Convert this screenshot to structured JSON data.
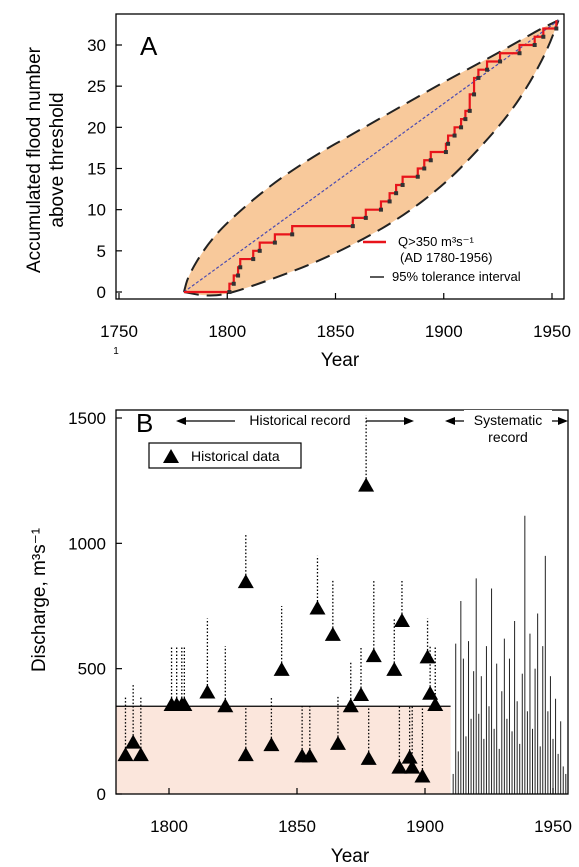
{
  "chart_data": [
    {
      "panel": "A",
      "type": "line",
      "panel_label": "A",
      "xlabel": "Year",
      "ylabel_line1": "Accumulated flood number",
      "ylabel_line2": "above threshold",
      "xlim": [
        1750,
        1955
      ],
      "ylim": [
        0,
        33
      ],
      "x_ticks": [
        "1750",
        "1800",
        "1850",
        "1900",
        "1950"
      ],
      "y_ticks": [
        "0",
        "5",
        "10",
        "15",
        "20",
        "25",
        "30"
      ],
      "stray_mark": "1",
      "legend": {
        "red_label": "Q>350 m³s⁻¹",
        "red_sublabel": "(AD 1780-1956)",
        "black_label": "95% tolerance interval"
      },
      "colors": {
        "step": "#e8141b",
        "fill": "#f8c99b",
        "diag": "#4a4ab0",
        "dash": "#222222"
      },
      "tolerance_band": {
        "upper": [
          [
            1780,
            0
          ],
          [
            1782,
            2
          ],
          [
            1790,
            5.5
          ],
          [
            1800,
            8.5
          ],
          [
            1820,
            13
          ],
          [
            1840,
            16.5
          ],
          [
            1860,
            19.5
          ],
          [
            1880,
            22.5
          ],
          [
            1900,
            25.5
          ],
          [
            1920,
            28.3
          ],
          [
            1935,
            30.5
          ],
          [
            1945,
            32
          ],
          [
            1953,
            33
          ]
        ],
        "lower": [
          [
            1780,
            0
          ],
          [
            1790,
            -0.5
          ],
          [
            1800,
            -0.3
          ],
          [
            1820,
            1.5
          ],
          [
            1840,
            3.5
          ],
          [
            1860,
            6
          ],
          [
            1880,
            9
          ],
          [
            1900,
            13
          ],
          [
            1915,
            17
          ],
          [
            1930,
            21.5
          ],
          [
            1940,
            25.5
          ],
          [
            1948,
            29.5
          ],
          [
            1953,
            33
          ]
        ]
      },
      "step_series": {
        "name": "Q>350 m³s⁻¹",
        "points": [
          [
            1780,
            0
          ],
          [
            1801,
            0
          ],
          [
            1801,
            1
          ],
          [
            1803,
            1
          ],
          [
            1803,
            2
          ],
          [
            1805,
            2
          ],
          [
            1805,
            3
          ],
          [
            1806,
            3
          ],
          [
            1806,
            4
          ],
          [
            1812,
            4
          ],
          [
            1812,
            5
          ],
          [
            1815,
            5
          ],
          [
            1815,
            6
          ],
          [
            1822,
            6
          ],
          [
            1822,
            7
          ],
          [
            1830,
            7
          ],
          [
            1830,
            8
          ],
          [
            1858,
            8
          ],
          [
            1858,
            9
          ],
          [
            1864,
            9
          ],
          [
            1864,
            10
          ],
          [
            1871,
            10
          ],
          [
            1871,
            11
          ],
          [
            1875,
            11
          ],
          [
            1875,
            12
          ],
          [
            1878,
            12
          ],
          [
            1878,
            13
          ],
          [
            1881,
            13
          ],
          [
            1881,
            14
          ],
          [
            1888,
            14
          ],
          [
            1888,
            15
          ],
          [
            1891,
            15
          ],
          [
            1891,
            16
          ],
          [
            1894,
            16
          ],
          [
            1894,
            17
          ],
          [
            1901,
            17
          ],
          [
            1901,
            18
          ],
          [
            1902,
            18
          ],
          [
            1902,
            19
          ],
          [
            1905,
            19
          ],
          [
            1905,
            20
          ],
          [
            1908,
            20
          ],
          [
            1908,
            21
          ],
          [
            1910,
            21
          ],
          [
            1910,
            22
          ],
          [
            1912,
            22
          ],
          [
            1912,
            24
          ],
          [
            1914,
            24
          ],
          [
            1914,
            26
          ],
          [
            1916,
            26
          ],
          [
            1916,
            27
          ],
          [
            1920,
            27
          ],
          [
            1920,
            28
          ],
          [
            1926,
            28
          ],
          [
            1926,
            29
          ],
          [
            1935,
            29
          ],
          [
            1935,
            30
          ],
          [
            1942,
            30
          ],
          [
            1942,
            31
          ],
          [
            1946,
            31
          ],
          [
            1946,
            32
          ],
          [
            1952,
            32
          ],
          [
            1952,
            33
          ]
        ]
      },
      "step_markers_x": [
        1801,
        1803,
        1805,
        1806,
        1812,
        1815,
        1822,
        1830,
        1858,
        1864,
        1871,
        1875,
        1878,
        1881,
        1888,
        1891,
        1894,
        1901,
        1902,
        1905,
        1908,
        1910,
        1912,
        1914,
        1916,
        1920,
        1926,
        1935,
        1942,
        1946,
        1952
      ]
    },
    {
      "panel": "B",
      "type": "scatter",
      "panel_label": "B",
      "xlabel": "Year",
      "ylabel": "Discharge, m³s⁻¹",
      "xlim": [
        1781,
        1957
      ],
      "ylim": [
        0,
        1500
      ],
      "x_ticks": [
        "1800",
        "1850",
        "1900",
        "1950"
      ],
      "y_ticks": [
        "0",
        "500",
        "1000",
        "1500"
      ],
      "threshold": 350,
      "colors": {
        "shade": "#fbe6dc",
        "marker": "#000000"
      },
      "annotations": {
        "historical": "Historical record",
        "systematic_line1": "Systematic",
        "systematic_line2": "record"
      },
      "legend_label": "Historical data",
      "historical": [
        {
          "x": 1783,
          "y": 155,
          "upper": 390
        },
        {
          "x": 1786,
          "y": 205,
          "upper": 440
        },
        {
          "x": 1789,
          "y": 155,
          "upper": 390
        },
        {
          "x": 1801,
          "y": 355,
          "upper": 590
        },
        {
          "x": 1803,
          "y": 355,
          "upper": 590
        },
        {
          "x": 1805,
          "y": 355,
          "upper": 590
        },
        {
          "x": 1806,
          "y": 355,
          "upper": 590
        },
        {
          "x": 1815,
          "y": 405,
          "upper": 700
        },
        {
          "x": 1822,
          "y": 350,
          "upper": 590
        },
        {
          "x": 1830,
          "y": 845,
          "upper": 1040
        },
        {
          "x": 1830,
          "y": 155,
          "upper": 350
        },
        {
          "x": 1840,
          "y": 195,
          "upper": 390
        },
        {
          "x": 1844,
          "y": 495,
          "upper": 750
        },
        {
          "x": 1852,
          "y": 150,
          "upper": 350
        },
        {
          "x": 1855,
          "y": 150,
          "upper": 350
        },
        {
          "x": 1858,
          "y": 740,
          "upper": 950
        },
        {
          "x": 1864,
          "y": 635,
          "upper": 850
        },
        {
          "x": 1866,
          "y": 200,
          "upper": 390
        },
        {
          "x": 1871,
          "y": 350,
          "upper": 530
        },
        {
          "x": 1875,
          "y": 395,
          "upper": 590
        },
        {
          "x": 1877,
          "y": 1230,
          "upper": 1510
        },
        {
          "x": 1878,
          "y": 140,
          "upper": 350
        },
        {
          "x": 1880,
          "y": 550,
          "upper": 850
        },
        {
          "x": 1888,
          "y": 495,
          "upper": 700
        },
        {
          "x": 1891,
          "y": 690,
          "upper": 850
        },
        {
          "x": 1890,
          "y": 105,
          "upper": 350
        },
        {
          "x": 1894,
          "y": 145,
          "upper": 350
        },
        {
          "x": 1895,
          "y": 105,
          "upper": 350
        },
        {
          "x": 1899,
          "y": 70,
          "upper": 350
        },
        {
          "x": 1901,
          "y": 545,
          "upper": 700
        },
        {
          "x": 1902,
          "y": 400,
          "upper": 590
        },
        {
          "x": 1904,
          "y": 355,
          "upper": 590
        }
      ],
      "systematic": [
        {
          "x": 1911,
          "y": 80
        },
        {
          "x": 1912,
          "y": 600
        },
        {
          "x": 1913,
          "y": 170
        },
        {
          "x": 1914,
          "y": 770
        },
        {
          "x": 1915,
          "y": 540
        },
        {
          "x": 1916,
          "y": 230
        },
        {
          "x": 1917,
          "y": 610
        },
        {
          "x": 1918,
          "y": 300
        },
        {
          "x": 1919,
          "y": 490
        },
        {
          "x": 1920,
          "y": 860
        },
        {
          "x": 1921,
          "y": 320
        },
        {
          "x": 1922,
          "y": 470
        },
        {
          "x": 1923,
          "y": 220
        },
        {
          "x": 1924,
          "y": 590
        },
        {
          "x": 1925,
          "y": 350
        },
        {
          "x": 1926,
          "y": 820
        },
        {
          "x": 1927,
          "y": 260
        },
        {
          "x": 1928,
          "y": 520
        },
        {
          "x": 1929,
          "y": 180
        },
        {
          "x": 1930,
          "y": 410
        },
        {
          "x": 1931,
          "y": 620
        },
        {
          "x": 1932,
          "y": 300
        },
        {
          "x": 1933,
          "y": 540
        },
        {
          "x": 1934,
          "y": 250
        },
        {
          "x": 1935,
          "y": 690
        },
        {
          "x": 1936,
          "y": 370
        },
        {
          "x": 1937,
          "y": 200
        },
        {
          "x": 1938,
          "y": 480
        },
        {
          "x": 1939,
          "y": 1110
        },
        {
          "x": 1940,
          "y": 330
        },
        {
          "x": 1941,
          "y": 640
        },
        {
          "x": 1942,
          "y": 260
        },
        {
          "x": 1943,
          "y": 500
        },
        {
          "x": 1944,
          "y": 720
        },
        {
          "x": 1945,
          "y": 190
        },
        {
          "x": 1946,
          "y": 590
        },
        {
          "x": 1947,
          "y": 950
        },
        {
          "x": 1948,
          "y": 330
        },
        {
          "x": 1949,
          "y": 470
        },
        {
          "x": 1950,
          "y": 220
        },
        {
          "x": 1951,
          "y": 380
        },
        {
          "x": 1952,
          "y": 160
        },
        {
          "x": 1953,
          "y": 290
        },
        {
          "x": 1954,
          "y": 110
        },
        {
          "x": 1955,
          "y": 80
        }
      ]
    }
  ]
}
